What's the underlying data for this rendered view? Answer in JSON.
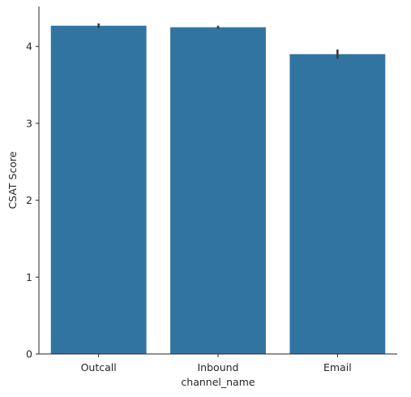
{
  "chart_data": {
    "type": "bar",
    "categories": [
      "Outcall",
      "Inbound",
      "Email"
    ],
    "values": [
      4.27,
      4.25,
      3.9
    ],
    "error_bars": [
      {
        "low": 4.24,
        "high": 4.3
      },
      {
        "low": 4.23,
        "high": 4.27
      },
      {
        "low": 3.84,
        "high": 3.96
      }
    ],
    "xlabel": "channel_name",
    "ylabel": "CSAT Score",
    "ylim": [
      0,
      4.52
    ],
    "yticks": [
      "0",
      "1",
      "2",
      "3",
      "4"
    ],
    "grid": false,
    "colors": {
      "bar": "#3274a1",
      "error_bar": "#3b3b3b",
      "axis": "#262626"
    }
  }
}
